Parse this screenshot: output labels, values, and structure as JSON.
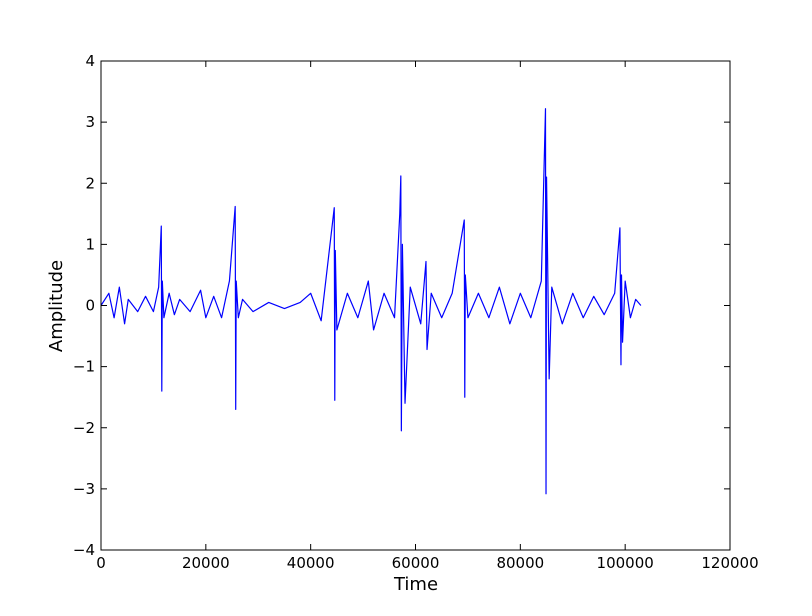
{
  "chart_data": {
    "type": "line",
    "title": "",
    "xlabel": "Time",
    "ylabel": "Amplitude",
    "xlim": [
      0,
      120000
    ],
    "ylim": [
      -4,
      4
    ],
    "x_ticks": [
      0,
      20000,
      40000,
      60000,
      80000,
      100000,
      120000
    ],
    "x_tick_labels": [
      "0",
      "20000",
      "40000",
      "60000",
      "80000",
      "100000",
      "120000"
    ],
    "y_ticks": [
      -4,
      -3,
      -2,
      -1,
      0,
      1,
      2,
      3,
      4
    ],
    "y_tick_labels": [
      "−4",
      "−3",
      "−2",
      "−1",
      "0",
      "1",
      "2",
      "3",
      "4"
    ],
    "grid": false,
    "legend": "none",
    "line_color": "#0000ff",
    "series": [
      {
        "x": [
          0,
          1500,
          2500,
          3500,
          4500,
          5200,
          7000,
          8500,
          10000,
          11000,
          11500,
          11600,
          11700,
          12000,
          13000,
          14000,
          15000,
          17000,
          19000,
          20000,
          21500,
          23000,
          24500,
          25600,
          25700,
          25800,
          26200,
          27000,
          29000,
          32000,
          35000,
          38000,
          40000,
          42000,
          44500,
          44600,
          44700,
          45000,
          47000,
          49000,
          51000,
          52000,
          54000,
          56000,
          57000,
          57200,
          57300,
          57500,
          58000,
          59000,
          61000,
          62000,
          62200,
          63000,
          65000,
          67000,
          69300,
          69400,
          69500,
          70000,
          72000,
          74000,
          76000,
          78000,
          80000,
          82000,
          84000,
          84800,
          84900,
          85000,
          85500,
          86000,
          88000,
          90000,
          92000,
          94000,
          96000,
          98000,
          99000,
          99200,
          99300,
          99500,
          100000,
          101000,
          102000,
          103000
        ],
        "y": [
          0,
          0.2,
          -0.2,
          0.3,
          -0.3,
          0.1,
          -0.1,
          0.15,
          -0.1,
          0.3,
          1.3,
          -1.4,
          0.4,
          -0.2,
          0.2,
          -0.15,
          0.1,
          -0.1,
          0.25,
          -0.2,
          0.15,
          -0.2,
          0.4,
          1.62,
          -1.7,
          0.4,
          -0.2,
          0.1,
          -0.1,
          0.05,
          -0.05,
          0.05,
          0.2,
          -0.25,
          1.6,
          -1.55,
          0.9,
          -0.4,
          0.2,
          -0.2,
          0.4,
          -0.4,
          0.2,
          -0.2,
          1.5,
          2.12,
          -2.05,
          1.0,
          -1.6,
          0.3,
          -0.3,
          0.72,
          -0.72,
          0.2,
          -0.2,
          0.2,
          1.4,
          -1.5,
          0.5,
          -0.2,
          0.2,
          -0.2,
          0.3,
          -0.3,
          0.2,
          -0.2,
          0.4,
          3.22,
          -3.08,
          2.1,
          -1.2,
          0.3,
          -0.3,
          0.2,
          -0.2,
          0.15,
          -0.15,
          0.2,
          1.27,
          -0.97,
          0.5,
          -0.6,
          0.4,
          -0.2,
          0.1,
          0
        ]
      }
    ]
  }
}
